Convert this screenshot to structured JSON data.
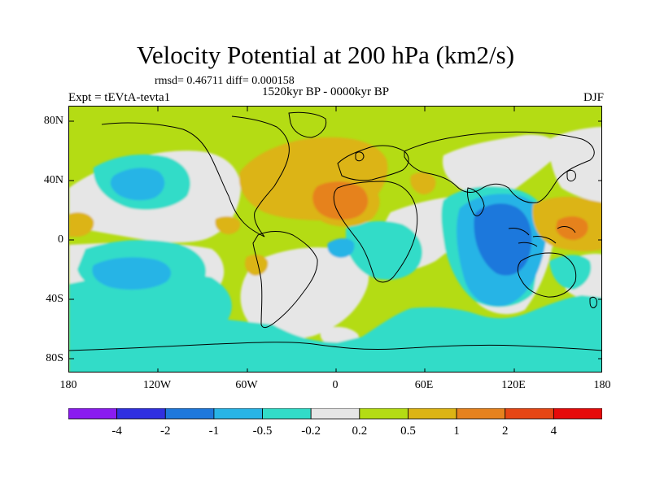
{
  "title": "Velocity Potential at 200 hPa (km2/s)",
  "stats": "rmsd= 0.46711 diff= 0.000158",
  "experiment": "Expt = tEVtA-tevta1",
  "period": "1520kyr BP - 0000kyr BP",
  "season": "DJF",
  "map": {
    "projection": "cylindrical-equidistant",
    "lon_range": [
      -180,
      180
    ],
    "lat_range": [
      -90,
      90
    ],
    "lat_ticks": [
      "80N",
      "40N",
      "0",
      "40S",
      "80S"
    ],
    "lat_tick_values": [
      80,
      40,
      0,
      -40,
      -80
    ],
    "lon_ticks": [
      "180",
      "120W",
      "60W",
      "0",
      "60E",
      "120E",
      "180"
    ],
    "lon_tick_values": [
      -180,
      -120,
      -60,
      0,
      60,
      120,
      180
    ]
  },
  "colorbar": {
    "labels": [
      "-4",
      "-2",
      "-1",
      "-0.5",
      "-0.2",
      "0.2",
      "0.5",
      "1",
      "2",
      "4"
    ],
    "colors": [
      "#8a1cf0",
      "#3030e0",
      "#1e78dc",
      "#28b4e6",
      "#32dcc8",
      "#e6e6e6",
      "#b4dc14",
      "#dcb414",
      "#e6821e",
      "#e64614",
      "#e60a0a"
    ]
  },
  "colors": {
    "bg_green": "#b4dc14",
    "neutral": "#e6e6e6",
    "teal": "#32dcc8",
    "lightblue": "#28b4e6",
    "blue": "#1e78dc",
    "yellow_orange": "#dcb414",
    "orange": "#e6821e"
  }
}
